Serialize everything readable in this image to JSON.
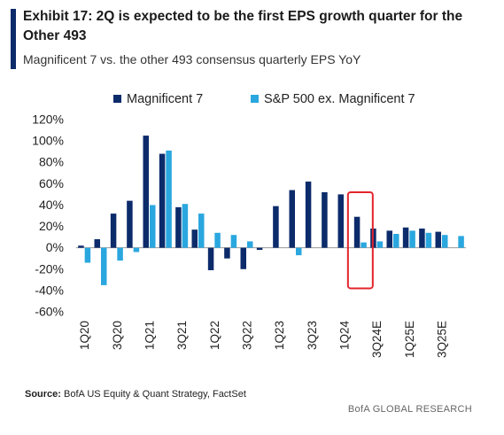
{
  "header": {
    "title": "Exhibit 17: 2Q is expected to be the first EPS growth quarter for the Other 493",
    "subtitle": "Magnificent 7 vs. the other 493 consensus quarterly EPS YoY"
  },
  "footer": {
    "source_label": "Source:",
    "source_text": "BofA US Equity & Quant Strategy, FactSet",
    "brand": "BofA GLOBAL RESEARCH"
  },
  "colors": {
    "mag7": "#0c2b6b",
    "sp493": "#2aa7df",
    "highlight": "#e3242b",
    "axis_text": "#222222"
  },
  "chart_data": {
    "type": "bar",
    "categories": [
      "1Q20",
      "2Q20",
      "3Q20",
      "4Q20",
      "1Q21",
      "2Q21",
      "3Q21",
      "4Q21",
      "1Q22",
      "2Q22",
      "3Q22",
      "4Q22",
      "1Q23",
      "2Q23",
      "3Q23",
      "4Q23",
      "1Q24",
      "2Q24",
      "3Q24E",
      "4Q24E",
      "1Q25E",
      "2Q25E",
      "3Q25E",
      "4Q25E"
    ],
    "tick_labels": [
      "1Q20",
      "",
      "3Q20",
      "",
      "1Q21",
      "",
      "3Q21",
      "",
      "1Q22",
      "",
      "3Q22",
      "",
      "1Q23",
      "",
      "3Q23",
      "",
      "1Q24",
      "",
      "3Q24E",
      "",
      "1Q25E",
      "",
      "3Q25E",
      ""
    ],
    "series": [
      {
        "name": "Magnificent 7",
        "values": [
          2,
          8,
          32,
          44,
          105,
          88,
          38,
          17,
          -21,
          -10,
          -20,
          -2,
          39,
          54,
          62,
          52,
          50,
          29,
          18,
          16,
          19,
          18,
          15,
          0
        ]
      },
      {
        "name": "S&P 500 ex. Magnificent 7",
        "values": [
          -14,
          -35,
          -12,
          -4,
          40,
          91,
          41,
          32,
          14,
          12,
          6,
          0,
          0,
          -7,
          0,
          0,
          0,
          5,
          6,
          13,
          16,
          14,
          12,
          11
        ]
      }
    ],
    "yticks": [
      -60,
      -40,
      -20,
      0,
      20,
      40,
      60,
      80,
      100,
      120
    ],
    "ytick_suffix": "%",
    "ylim": [
      -60,
      120
    ],
    "legend_position": "top-center",
    "highlight_category": "2Q24"
  }
}
